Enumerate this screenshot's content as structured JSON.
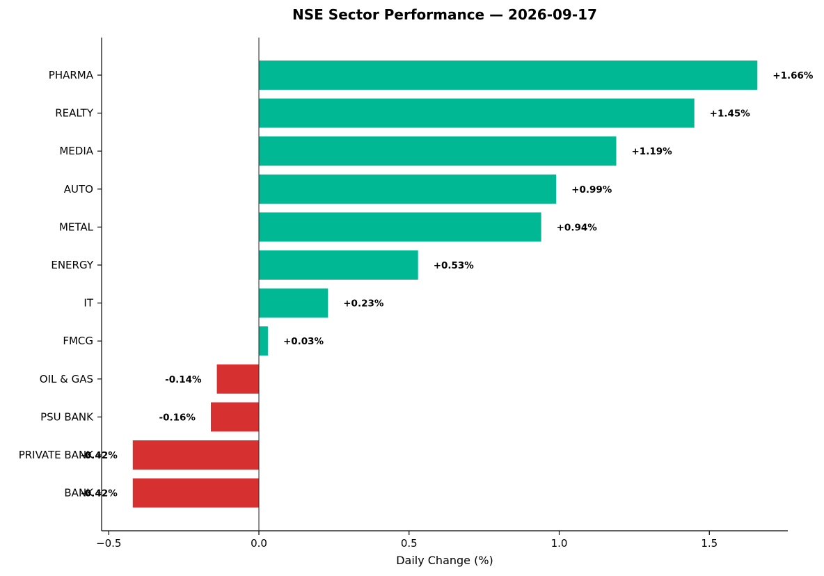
{
  "chart_data": {
    "type": "bar",
    "orientation": "horizontal",
    "title": "NSE Sector Performance — 2026-09-17",
    "xlabel": "Daily Change (%)",
    "ylabel": "",
    "xlim": [
      -0.5,
      1.75
    ],
    "xticks": [
      -0.5,
      0.0,
      0.5,
      1.0,
      1.5
    ],
    "xtick_labels": [
      "−0.5",
      "0.0",
      "0.5",
      "1.0",
      "1.5"
    ],
    "categories": [
      "PHARMA",
      "REALTY",
      "MEDIA",
      "AUTO",
      "METAL",
      "ENERGY",
      "IT",
      "FMCG",
      "OIL & GAS",
      "PSU BANK",
      "PRIVATE BANK",
      "BANK"
    ],
    "values": [
      1.66,
      1.45,
      1.19,
      0.99,
      0.94,
      0.53,
      0.23,
      0.03,
      -0.14,
      -0.16,
      -0.42,
      -0.42
    ],
    "value_labels": [
      "+1.66%",
      "+1.45%",
      "+1.19%",
      "+0.99%",
      "+0.94%",
      "+0.53%",
      "+0.23%",
      "+0.03%",
      "-0.14%",
      "-0.16%",
      "-0.42%",
      "-0.42%"
    ],
    "colors": {
      "positive": "#00b894",
      "negative": "#d63031"
    },
    "grid": false,
    "legend": "none"
  }
}
